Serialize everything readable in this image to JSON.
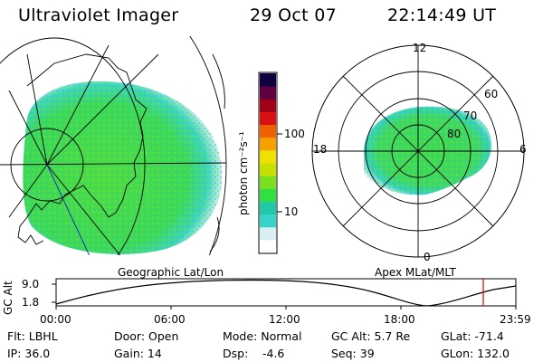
{
  "header": {
    "instrument": "Ultraviolet Imager",
    "date": "29 Oct 07",
    "time": "22:14:49 UT"
  },
  "colorbar": {
    "label": "photon cm⁻²s⁻¹",
    "ticks": [
      "100",
      "10"
    ],
    "scale": "log",
    "colors": [
      "#ffffff",
      "#d8eef0",
      "#34d4c8",
      "#20c8a8",
      "#30e040",
      "#7ae020",
      "#c8e000",
      "#f0e000",
      "#f8a000",
      "#f06000",
      "#d81010",
      "#a00018",
      "#600040",
      "#100040"
    ]
  },
  "geo_panel": {
    "label": "Geographic Lat/Lon"
  },
  "polar_panel": {
    "label": "Apex MLat/MLT",
    "mlt_labels": {
      "top": "12",
      "left": "18",
      "right": "6",
      "bottom": "0"
    },
    "lat_labels": [
      "60",
      "70",
      "80"
    ]
  },
  "altitude_plot": {
    "ylabel": "GC Alt",
    "yticks": [
      "9.0",
      "1.8"
    ],
    "xticks": [
      "00:00",
      "06:00",
      "12:00",
      "18:00",
      "23:59"
    ],
    "marker_color": "#e00000"
  },
  "info": {
    "flt": "Flt: LBHL",
    "ip": "IP: 36.0",
    "door": "Door: Open",
    "gain": "Gain: 14",
    "mode": "Mode: Normal",
    "dsp_label": "Dsp:",
    "dsp_value": "-4.6",
    "gcalt": "GC Alt: 5.7 Re",
    "seq": "Seq: 39",
    "glat": "GLat: -71.4",
    "glon": "GLon: 132.0"
  }
}
